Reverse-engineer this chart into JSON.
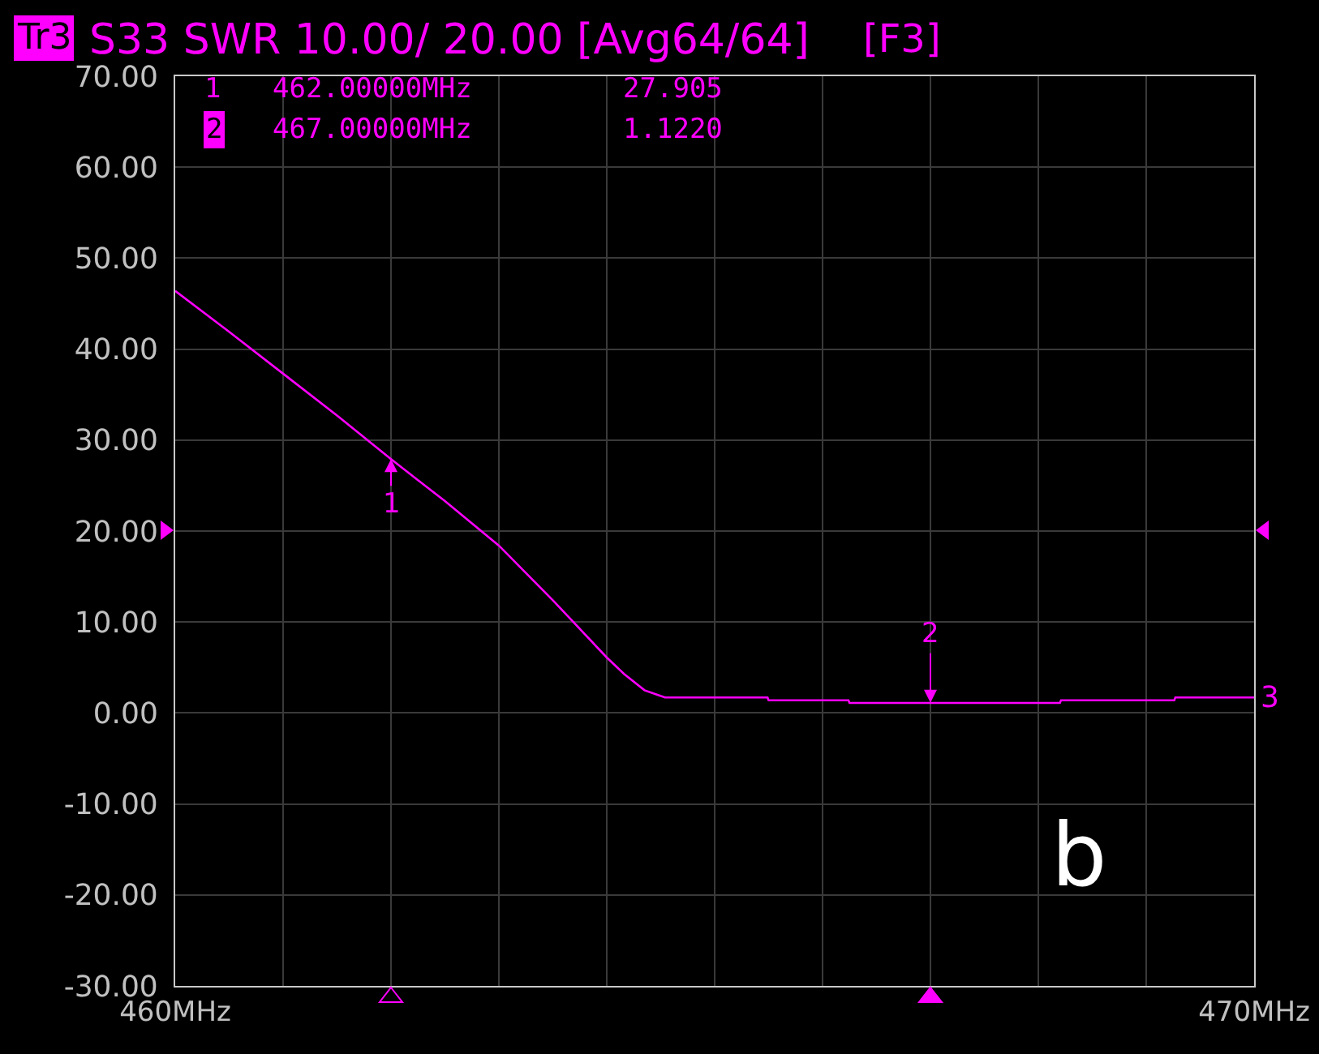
{
  "chart_data": {
    "type": "line",
    "title": "S33 SWR 10.00/ 20.00 [Avg64/64]",
    "annotations": [
      "Tr3",
      "[F3]",
      "1",
      "462.00000MHz",
      "27.905",
      "2",
      "467.00000MHz",
      "1.1220",
      "b",
      {
        "text": "1",
        "x": 462,
        "y": 27.905
      },
      {
        "text": "2",
        "x": 467,
        "y": 1.122
      }
    ],
    "x": [
      460,
      460.5,
      461,
      461.5,
      462,
      462.5,
      463,
      463.5,
      464,
      464.16,
      464.35,
      464.47,
      464.54,
      465.49,
      465.5,
      466.24,
      466.25,
      468.2,
      468.21,
      469.26,
      469.27,
      470
    ],
    "series": [
      {
        "name": "3",
        "color": "#ff00ff",
        "values": [
          46.4,
          41.9,
          37.3,
          32.7,
          27.9,
          23.3,
          18.4,
          12.4,
          6.1,
          4.3,
          2.5,
          2.0,
          1.7,
          1.7,
          1.4,
          1.4,
          1.1,
          1.1,
          1.4,
          1.4,
          1.7,
          1.7
        ]
      }
    ],
    "xlim": [
      460,
      470
    ],
    "xticks": [
      {
        "value": 460,
        "label": "460MHz"
      },
      {
        "value": 461,
        "label": null
      },
      {
        "value": 462,
        "label": null
      },
      {
        "value": 463,
        "label": null
      },
      {
        "value": 464,
        "label": null
      },
      {
        "value": 465,
        "label": null
      },
      {
        "value": 466,
        "label": null
      },
      {
        "value": 467,
        "label": null
      },
      {
        "value": 468,
        "label": null
      },
      {
        "value": 469,
        "label": null
      },
      {
        "value": 470,
        "label": "470MHz"
      }
    ],
    "ylim": [
      -30,
      70
    ],
    "yticks": [
      {
        "value": 70,
        "label": "70.00"
      },
      {
        "value": 60,
        "label": "60.00"
      },
      {
        "value": 50,
        "label": "50.00"
      },
      {
        "value": 40,
        "label": "40.00"
      },
      {
        "value": 30,
        "label": "30.00"
      },
      {
        "value": 20,
        "label": "20.00"
      },
      {
        "value": 10,
        "label": "10.00"
      },
      {
        "value": 0,
        "label": "0.00"
      },
      {
        "value": -10,
        "label": "-10.00"
      },
      {
        "value": -20,
        "label": "-20.00"
      },
      {
        "value": -30,
        "label": "-30.00"
      }
    ],
    "grid": true,
    "legend": false
  }
}
